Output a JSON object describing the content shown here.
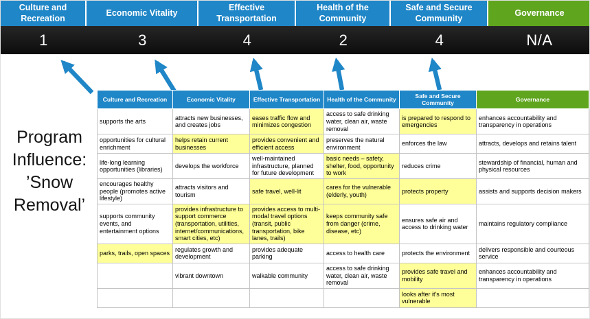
{
  "colors": {
    "category_blue": "#1f86c7",
    "governance_green": "#5fa51e",
    "score_band_dark": "#161616",
    "highlight_yellow": "#ffff99",
    "arrow_blue": "#1f86c7"
  },
  "program_label": "Program Influence: ’Snow Removal’",
  "scoreboard": {
    "columns": [
      {
        "label": "Culture and Recreation",
        "score": "1",
        "color": "#1f86c7"
      },
      {
        "label": "Economic Vitality",
        "score": "3",
        "color": "#1f86c7"
      },
      {
        "label": "Effective Transportation",
        "score": "4",
        "color": "#1f86c7"
      },
      {
        "label": "Health of the Community",
        "score": "2",
        "color": "#1f86c7"
      },
      {
        "label": "Safe and Secure Community",
        "score": "4",
        "color": "#1f86c7"
      },
      {
        "label": "Governance",
        "score": "N/A",
        "color": "#5fa51e"
      }
    ]
  },
  "table": {
    "headers": [
      {
        "label": "Culture and Recreation",
        "color": "#1f86c7"
      },
      {
        "label": "Economic Vitality",
        "color": "#1f86c7"
      },
      {
        "label": "Effective Transportation",
        "color": "#1f86c7"
      },
      {
        "label": "Health of the Community",
        "color": "#1f86c7"
      },
      {
        "label": "Safe and Secure Community",
        "color": "#1f86c7"
      },
      {
        "label": "Governance",
        "color": "#5fa51e"
      }
    ],
    "rows": [
      [
        {
          "text": "supports the arts",
          "highlight": false
        },
        {
          "text": "attracts new businesses, and creates jobs",
          "highlight": false
        },
        {
          "text": "eases traffic flow and minimizes congestion",
          "highlight": true
        },
        {
          "text": "access to safe drinking water, clean air, waste removal",
          "highlight": false
        },
        {
          "text": "is prepared to respond to emergencies",
          "highlight": true
        },
        {
          "text": "enhances accountability and transparency in operations",
          "highlight": false
        }
      ],
      [
        {
          "text": "opportunities for cultural enrichment",
          "highlight": false
        },
        {
          "text": "helps retain current businesses",
          "highlight": true
        },
        {
          "text": "provides convenient and efficient access",
          "highlight": true
        },
        {
          "text": "preserves the natural environment",
          "highlight": false
        },
        {
          "text": "enforces the law",
          "highlight": false
        },
        {
          "text": "attracts, develops and retains talent",
          "highlight": false
        }
      ],
      [
        {
          "text": "life-long learning opportunities (libraries)",
          "highlight": false
        },
        {
          "text": "develops the workforce",
          "highlight": false
        },
        {
          "text": "well-maintained infrastructure, planned for future development",
          "highlight": false
        },
        {
          "text": "basic needs – safety, shelter, food, opportunity to work",
          "highlight": true
        },
        {
          "text": "reduces crime",
          "highlight": false
        },
        {
          "text": "stewardship of financial, human and physical resources",
          "highlight": false
        }
      ],
      [
        {
          "text": "encourages healthy people (promotes active lifestyle)",
          "highlight": false
        },
        {
          "text": "attracts visitors and tourism",
          "highlight": false
        },
        {
          "text": "safe travel, well-lit",
          "highlight": true
        },
        {
          "text": "cares for the vulnerable (elderly, youth)",
          "highlight": true
        },
        {
          "text": "protects property",
          "highlight": true
        },
        {
          "text": "assists and supports decision makers",
          "highlight": false
        }
      ],
      [
        {
          "text": "supports community events, and entertainment options",
          "highlight": false
        },
        {
          "text": "provides infrastructure to support commerce (transportation, utilities, internet/communications, smart cities, etc)",
          "highlight": true
        },
        {
          "text": "provides access to multi-modal travel options (transit, public transportation, bike lanes, trails)",
          "highlight": true
        },
        {
          "text": "keeps community safe from danger (crime, disease, etc)",
          "highlight": true
        },
        {
          "text": "ensures safe air and access to drinking water",
          "highlight": false
        },
        {
          "text": "maintains regulatory compliance",
          "highlight": false
        }
      ],
      [
        {
          "text": "parks, trails, open spaces",
          "highlight": true
        },
        {
          "text": "regulates growth and development",
          "highlight": false
        },
        {
          "text": "provides adequate parking",
          "highlight": false
        },
        {
          "text": "access to health care",
          "highlight": false
        },
        {
          "text": "protects the environment",
          "highlight": false
        },
        {
          "text": "delivers responsible and courteous service",
          "highlight": false
        }
      ],
      [
        {
          "text": "",
          "highlight": false
        },
        {
          "text": "vibrant downtown",
          "highlight": false
        },
        {
          "text": "walkable community",
          "highlight": false
        },
        {
          "text": "access to safe drinking water, clean air, waste removal",
          "highlight": false
        },
        {
          "text": "provides safe travel and mobility",
          "highlight": true
        },
        {
          "text": "enhances accountability and transparency in operations",
          "highlight": false
        }
      ],
      [
        {
          "text": "",
          "highlight": false
        },
        {
          "text": "",
          "highlight": false
        },
        {
          "text": "",
          "highlight": false
        },
        {
          "text": "",
          "highlight": false
        },
        {
          "text": "looks after it's most vulnerable",
          "highlight": true
        },
        {
          "text": "",
          "highlight": false
        }
      ]
    ]
  }
}
